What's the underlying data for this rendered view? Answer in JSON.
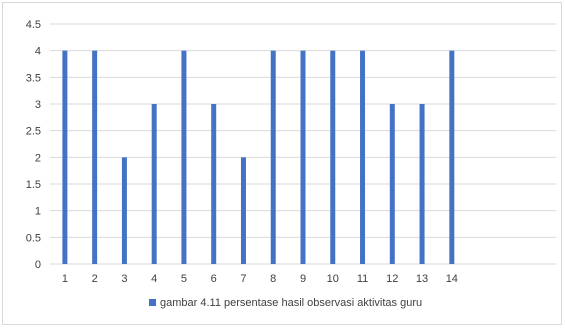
{
  "chart_data": {
    "type": "bar",
    "categories": [
      "1",
      "2",
      "3",
      "4",
      "5",
      "6",
      "7",
      "8",
      "9",
      "10",
      "11",
      "12",
      "13",
      "14"
    ],
    "series": [
      {
        "name": "gambar 4.11  persentase hasil observasi aktivitas guru",
        "values": [
          4,
          4,
          2,
          3,
          4,
          3,
          2,
          4,
          4,
          4,
          4,
          3,
          3,
          4
        ],
        "color": "#4472c4"
      }
    ],
    "y_ticks": [
      "0",
      "0.5",
      "1",
      "1.5",
      "2",
      "2.5",
      "3",
      "3.5",
      "4",
      "4.5"
    ],
    "ylim": [
      0,
      4.5
    ],
    "x_slots": 17,
    "grid": true,
    "legend_position": "bottom",
    "title": "",
    "xlabel": "",
    "ylabel": ""
  }
}
